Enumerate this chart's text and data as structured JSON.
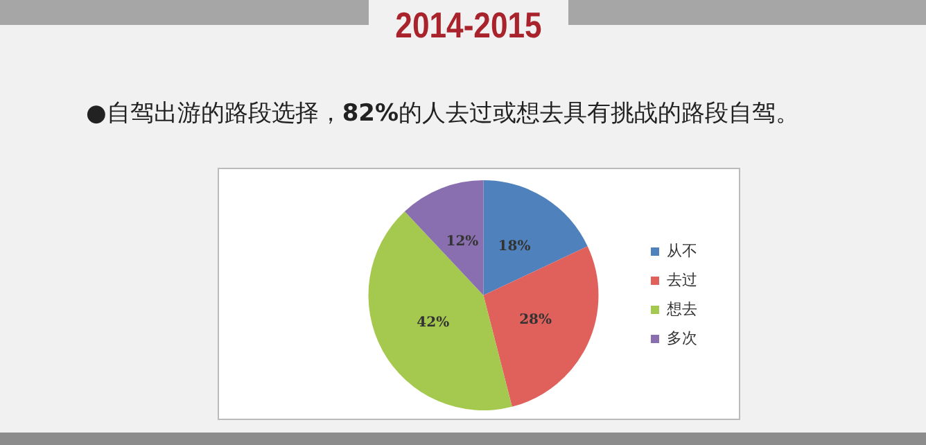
{
  "chart_data": {
    "type": "pie",
    "title": "2014-2015",
    "subtitle": "●自驾出游的路段选择，82%的人去过或想去具有挑战的路段自驾。",
    "categories": [
      "从不",
      "去过",
      "想去",
      "多次"
    ],
    "values": [
      18,
      28,
      42,
      12
    ],
    "colors": [
      "#4f81bd",
      "#e0605c",
      "#a5c94f",
      "#8a6fb0"
    ],
    "value_labels": [
      "18%",
      "28%",
      "42%",
      "12%"
    ],
    "legend": "right"
  }
}
